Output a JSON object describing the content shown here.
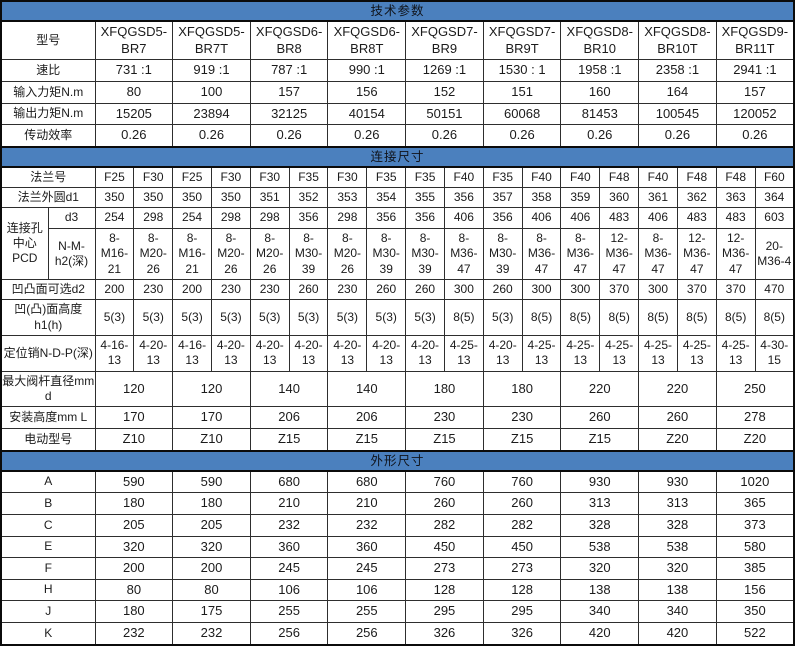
{
  "table": {
    "total_cols": 20,
    "sections": {
      "technical_params": "技术参数",
      "connection_dims": "连接尺寸",
      "overall_dims": "外形尺寸"
    },
    "rows": [
      {
        "type": "section",
        "key": "tech-params",
        "label": "技术参数"
      },
      {
        "type": "wide",
        "key": "model",
        "label": "型号",
        "cells": [
          "XFQGSD5-\nBR7",
          "XFQGSD5-\nBR7T",
          "XFQGSD6-\nBR8",
          "XFQGSD6-\nBR8T",
          "XFQGSD7-\nBR9",
          "XFQGSD7-\nBR9T",
          "XFQGSD8-\nBR10",
          "XFQGSD8-\nBR10T",
          "XFQGSD9-\nBR11T"
        ]
      },
      {
        "type": "wide",
        "key": "speed-ratio",
        "label": "速比",
        "cells": [
          "731 :1",
          "919 :1",
          "787 :1",
          "990 :1",
          "1269 :1",
          "1530 : 1",
          "1958 :1",
          "2358 :1",
          "2941 :1"
        ]
      },
      {
        "type": "wide",
        "key": "input-torque",
        "label": "输入力矩N.m",
        "cells": [
          "80",
          "100",
          "157",
          "156",
          "152",
          "151",
          "160",
          "164",
          "157"
        ]
      },
      {
        "type": "wide",
        "key": "output-torque",
        "label": "输出力矩N.m",
        "cells": [
          "15205",
          "23894",
          "32125",
          "40154",
          "50151",
          "60068",
          "81453",
          "100545",
          "120052"
        ]
      },
      {
        "type": "wide",
        "key": "efficiency",
        "label": "传动效率",
        "cells": [
          "0.26",
          "0.26",
          "0.26",
          "0.26",
          "0.26",
          "0.26",
          "0.26",
          "0.26",
          "0.26"
        ]
      },
      {
        "type": "section",
        "key": "connection-dims",
        "label": "连接尺寸"
      },
      {
        "type": "narrow",
        "key": "flange-no",
        "label": "法兰号",
        "cells": [
          "F25",
          "F30",
          "F25",
          "F30",
          "F30",
          "F35",
          "F30",
          "F35",
          "F35",
          "F40",
          "F35",
          "F40",
          "F40",
          "F48",
          "F40",
          "F48",
          "F48",
          "F60"
        ]
      },
      {
        "type": "narrow",
        "key": "flange-od-d1",
        "label": "法兰外圆d1",
        "cells": [
          "350",
          "350",
          "350",
          "350",
          "351",
          "352",
          "353",
          "354",
          "355",
          "356",
          "357",
          "358",
          "359",
          "360",
          "361",
          "362",
          "363",
          "364"
        ]
      },
      {
        "type": "narrow",
        "key": "pcd-d3",
        "label": "d3",
        "group": {
          "label": "连接孔\n中心\nPCD",
          "rowspan": 2
        },
        "cells": [
          "254",
          "298",
          "254",
          "298",
          "298",
          "356",
          "298",
          "356",
          "356",
          "406",
          "356",
          "406",
          "406",
          "483",
          "406",
          "483",
          "483",
          "603"
        ]
      },
      {
        "type": "narrow",
        "key": "bolt-n-m-h2",
        "label": "N-M-\nh2(深)",
        "grouped": true,
        "cells": [
          "8-M16-21",
          "8-M20-26",
          "8-M16-21",
          "8-M20-26",
          "8-M20-26",
          "8-M30-39",
          "8-M20-26",
          "8-M30-39",
          "8-M30-39",
          "8-M36-47",
          "8-M30-39",
          "8-M36-47",
          "8-M36-47",
          "12-M36-47",
          "8-M36-47",
          "12-M36-47",
          "12-M36-47",
          "20-M36-4"
        ]
      },
      {
        "type": "narrow",
        "key": "face-d2",
        "label": "凹凸面可选d2",
        "cells": [
          "200",
          "230",
          "200",
          "230",
          "230",
          "260",
          "230",
          "260",
          "260",
          "300",
          "260",
          "300",
          "300",
          "370",
          "300",
          "370",
          "370",
          "470"
        ]
      },
      {
        "type": "narrow",
        "key": "face-height-h1",
        "label": "凹(凸)面高度\nh1(h)",
        "cells": [
          "5(3)",
          "5(3)",
          "5(3)",
          "5(3)",
          "5(3)",
          "5(3)",
          "5(3)",
          "5(3)",
          "5(3)",
          "8(5)",
          "5(3)",
          "8(5)",
          "8(5)",
          "8(5)",
          "8(5)",
          "8(5)",
          "8(5)",
          "8(5)"
        ]
      },
      {
        "type": "narrow",
        "key": "pin-n-d-p",
        "label": "定位销N-D-P(深)",
        "cells": [
          "4-16-13",
          "4-20-13",
          "4-16-13",
          "4-20-13",
          "4-20-13",
          "4-20-13",
          "4-20-13",
          "4-20-13",
          "4-20-13",
          "4-25-13",
          "4-20-13",
          "4-25-13",
          "4-25-13",
          "4-25-13",
          "4-25-13",
          "4-25-13",
          "4-25-13",
          "4-30-15"
        ]
      },
      {
        "type": "wide",
        "key": "max-stem-dia",
        "label": "最大阀杆直径mm\nd",
        "cells": [
          "120",
          "120",
          "140",
          "140",
          "180",
          "180",
          "220",
          "220",
          "250"
        ]
      },
      {
        "type": "wide",
        "key": "mount-height",
        "label": "安装高度mm L",
        "cells": [
          "170",
          "170",
          "206",
          "206",
          "230",
          "230",
          "260",
          "260",
          "278"
        ]
      },
      {
        "type": "wide",
        "key": "motor-model",
        "label": "电动型号",
        "cells": [
          "Z10",
          "Z10",
          "Z15",
          "Z15",
          "Z15",
          "Z15",
          "Z15",
          "Z20",
          "Z20"
        ]
      },
      {
        "type": "section",
        "key": "overall-dims",
        "label": "外形尺寸"
      },
      {
        "type": "wide",
        "key": "dim-a",
        "label": "A",
        "cells": [
          "590",
          "590",
          "680",
          "680",
          "760",
          "760",
          "930",
          "930",
          "1020"
        ]
      },
      {
        "type": "wide",
        "key": "dim-b",
        "label": "B",
        "cells": [
          "180",
          "180",
          "210",
          "210",
          "260",
          "260",
          "313",
          "313",
          "365"
        ]
      },
      {
        "type": "wide",
        "key": "dim-c",
        "label": "C",
        "cells": [
          "205",
          "205",
          "232",
          "232",
          "282",
          "282",
          "328",
          "328",
          "373"
        ]
      },
      {
        "type": "wide",
        "key": "dim-e",
        "label": "E",
        "cells": [
          "320",
          "320",
          "360",
          "360",
          "450",
          "450",
          "538",
          "538",
          "580"
        ]
      },
      {
        "type": "wide",
        "key": "dim-f",
        "label": "F",
        "cells": [
          "200",
          "200",
          "245",
          "245",
          "273",
          "273",
          "320",
          "320",
          "385"
        ]
      },
      {
        "type": "wide",
        "key": "dim-h",
        "label": "H",
        "cells": [
          "80",
          "80",
          "106",
          "106",
          "128",
          "128",
          "138",
          "138",
          "156"
        ]
      },
      {
        "type": "wide",
        "key": "dim-j",
        "label": "J",
        "cells": [
          "180",
          "175",
          "255",
          "255",
          "295",
          "295",
          "340",
          "340",
          "350"
        ]
      },
      {
        "type": "wide",
        "key": "dim-k",
        "label": "K",
        "cells": [
          "232",
          "232",
          "256",
          "256",
          "326",
          "326",
          "420",
          "420",
          "522"
        ]
      }
    ],
    "colors": {
      "section_bar": "#4b80be",
      "border_dark": "#0b0b0b",
      "grid_line": "#2e2e2e",
      "text": "#1b1b1b"
    }
  }
}
